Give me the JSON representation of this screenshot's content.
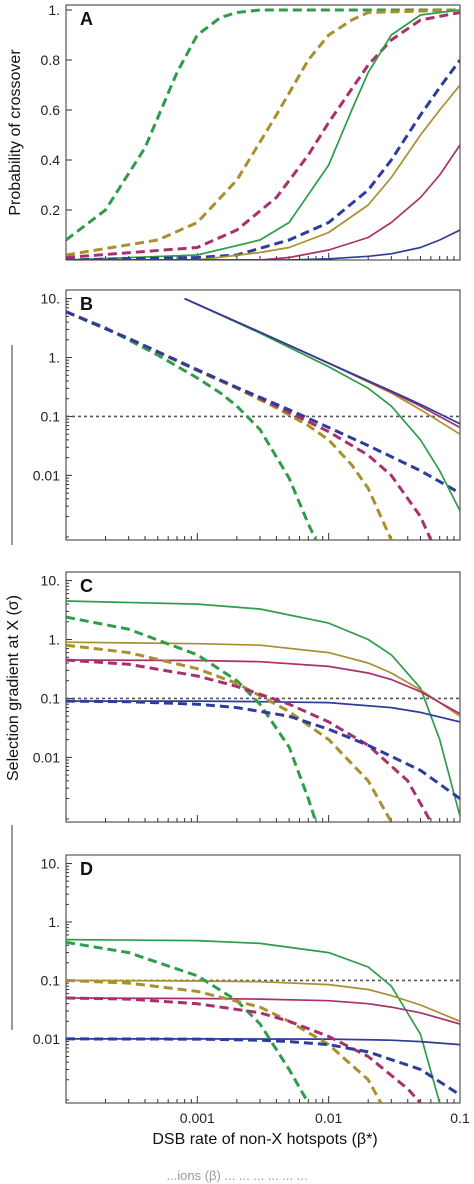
{
  "figure": {
    "shared_ylabel": "Selection gradient at X (σ)",
    "xlabel": "DSB rate of non-X hotspots (β*)",
    "caption_fragment": "...ions (β) ... ... ... ... ... ..."
  },
  "colors": {
    "green": "#2e9c4a",
    "olive": "#a8902e",
    "magenta": "#a8306e",
    "blue": "#2e3c9c",
    "reference": "#555555",
    "axis": "#333333"
  },
  "chart_data": [
    {
      "panel": "A",
      "type": "line",
      "ylabel": "Probability of crossover",
      "xscale": "log",
      "xlim": [
        0.0001,
        0.1
      ],
      "yscale": "linear",
      "ylim": [
        0,
        1.02
      ],
      "yticks": [
        0.2,
        0.4,
        0.6,
        0.8,
        1.0
      ],
      "ytick_labels": [
        "0.2",
        "0.4",
        "0.6",
        "0.8",
        "1."
      ],
      "series": [
        {
          "color": "green",
          "style": "dashed",
          "x": [
            0.0001,
            0.0002,
            0.0004,
            0.0007,
            0.001,
            0.0015,
            0.002,
            0.003,
            0.1
          ],
          "y": [
            0.08,
            0.2,
            0.45,
            0.75,
            0.9,
            0.97,
            0.99,
            1.0,
            1.0
          ]
        },
        {
          "color": "olive",
          "style": "dashed",
          "x": [
            0.0001,
            0.0005,
            0.001,
            0.002,
            0.004,
            0.007,
            0.01,
            0.015,
            0.02,
            0.1
          ],
          "y": [
            0.02,
            0.08,
            0.15,
            0.32,
            0.58,
            0.8,
            0.9,
            0.96,
            0.99,
            1.0
          ]
        },
        {
          "color": "magenta",
          "style": "dashed",
          "x": [
            0.0001,
            0.001,
            0.002,
            0.004,
            0.007,
            0.01,
            0.02,
            0.03,
            0.05,
            0.1
          ],
          "y": [
            0.01,
            0.05,
            0.12,
            0.25,
            0.42,
            0.55,
            0.78,
            0.88,
            0.96,
            0.99
          ]
        },
        {
          "color": "green",
          "style": "solid",
          "x": [
            0.0001,
            0.001,
            0.003,
            0.005,
            0.01,
            0.015,
            0.02,
            0.03,
            0.05,
            0.1
          ],
          "y": [
            0.0,
            0.02,
            0.08,
            0.15,
            0.38,
            0.6,
            0.75,
            0.9,
            0.98,
            1.0
          ]
        },
        {
          "color": "blue",
          "style": "dashed",
          "x": [
            0.0001,
            0.001,
            0.002,
            0.005,
            0.01,
            0.02,
            0.03,
            0.05,
            0.07,
            0.1
          ],
          "y": [
            0.0,
            0.01,
            0.02,
            0.08,
            0.15,
            0.28,
            0.4,
            0.58,
            0.69,
            0.8
          ]
        },
        {
          "color": "olive",
          "style": "solid",
          "x": [
            0.0001,
            0.001,
            0.003,
            0.005,
            0.01,
            0.02,
            0.03,
            0.05,
            0.07,
            0.1
          ],
          "y": [
            0.0,
            0.0,
            0.03,
            0.05,
            0.11,
            0.22,
            0.33,
            0.5,
            0.6,
            0.7
          ]
        },
        {
          "color": "magenta",
          "style": "solid",
          "x": [
            0.0001,
            0.003,
            0.005,
            0.01,
            0.02,
            0.03,
            0.05,
            0.07,
            0.1
          ],
          "y": [
            0.0,
            0.0,
            0.01,
            0.04,
            0.09,
            0.15,
            0.25,
            0.34,
            0.46
          ]
        },
        {
          "color": "blue",
          "style": "solid",
          "x": [
            0.0001,
            0.005,
            0.01,
            0.02,
            0.03,
            0.05,
            0.07,
            0.1
          ],
          "y": [
            0.0,
            0.0,
            0.005,
            0.015,
            0.025,
            0.05,
            0.08,
            0.12
          ]
        }
      ]
    },
    {
      "panel": "B",
      "type": "line",
      "ylabel": "",
      "xscale": "log",
      "xlim": [
        0.0001,
        0.1
      ],
      "yscale": "log",
      "ylim": [
        0.0008,
        14
      ],
      "yticks": [
        0.01,
        0.1,
        1,
        10
      ],
      "ytick_labels": [
        "0.01",
        "0.1",
        "1.",
        "10."
      ],
      "reference_line": 0.1,
      "series": [
        {
          "color": "green",
          "style": "dashed",
          "x": [
            0.0001,
            0.0002,
            0.0005,
            0.001,
            0.0015,
            0.002,
            0.003,
            0.005,
            0.007,
            0.008
          ],
          "y": [
            6.0,
            3.2,
            1.1,
            0.45,
            0.25,
            0.15,
            0.06,
            0.009,
            0.0015,
            0.0008
          ]
        },
        {
          "color": "olive",
          "style": "dashed",
          "x": [
            0.0001,
            0.0003,
            0.001,
            0.002,
            0.004,
            0.007,
            0.01,
            0.015,
            0.02,
            0.03
          ],
          "y": [
            6.0,
            2.1,
            0.6,
            0.3,
            0.14,
            0.07,
            0.04,
            0.015,
            0.006,
            0.0008
          ]
        },
        {
          "color": "magenta",
          "style": "dashed",
          "x": [
            0.0001,
            0.0003,
            0.001,
            0.002,
            0.004,
            0.01,
            0.02,
            0.03,
            0.05,
            0.06
          ],
          "y": [
            6.0,
            2.1,
            0.62,
            0.31,
            0.15,
            0.055,
            0.022,
            0.01,
            0.002,
            0.0008
          ]
        },
        {
          "color": "blue",
          "style": "dashed",
          "x": [
            0.0001,
            0.0003,
            0.001,
            0.002,
            0.005,
            0.01,
            0.02,
            0.05,
            0.1
          ],
          "y": [
            6.0,
            2.1,
            0.62,
            0.31,
            0.13,
            0.065,
            0.032,
            0.012,
            0.005
          ]
        },
        {
          "color": "green",
          "style": "solid",
          "x": [
            0.0008,
            0.001,
            0.003,
            0.01,
            0.02,
            0.03,
            0.05,
            0.07,
            0.1
          ],
          "y": [
            10.0,
            8.0,
            2.6,
            0.7,
            0.3,
            0.15,
            0.04,
            0.012,
            0.0025
          ]
        },
        {
          "color": "olive",
          "style": "solid",
          "x": [
            0.0008,
            0.001,
            0.003,
            0.01,
            0.03,
            0.05,
            0.1
          ],
          "y": [
            10.0,
            8.0,
            2.7,
            0.8,
            0.25,
            0.13,
            0.05
          ]
        },
        {
          "color": "magenta",
          "style": "solid",
          "x": [
            0.0008,
            0.001,
            0.003,
            0.01,
            0.03,
            0.05,
            0.1
          ],
          "y": [
            10.0,
            8.0,
            2.7,
            0.8,
            0.26,
            0.15,
            0.065
          ]
        },
        {
          "color": "blue",
          "style": "solid",
          "x": [
            0.0008,
            0.001,
            0.003,
            0.01,
            0.03,
            0.05,
            0.1
          ],
          "y": [
            10.0,
            8.0,
            2.7,
            0.8,
            0.27,
            0.16,
            0.075
          ]
        }
      ]
    },
    {
      "panel": "C",
      "type": "line",
      "ylabel": "",
      "xscale": "log",
      "xlim": [
        0.0001,
        0.1
      ],
      "yscale": "log",
      "ylim": [
        0.0008,
        14
      ],
      "yticks": [
        0.01,
        0.1,
        1,
        10
      ],
      "ytick_labels": [
        "0.01",
        "0.1",
        "1.",
        "10."
      ],
      "reference_line": 0.1,
      "series": [
        {
          "color": "green",
          "style": "solid",
          "x": [
            0.0001,
            0.001,
            0.003,
            0.01,
            0.02,
            0.03,
            0.05,
            0.07,
            0.1
          ],
          "y": [
            4.5,
            4.0,
            3.3,
            1.9,
            1.0,
            0.55,
            0.15,
            0.02,
            0.001
          ]
        },
        {
          "color": "olive",
          "style": "solid",
          "x": [
            0.0001,
            0.001,
            0.003,
            0.01,
            0.02,
            0.03,
            0.05,
            0.1
          ],
          "y": [
            0.9,
            0.85,
            0.8,
            0.6,
            0.4,
            0.27,
            0.14,
            0.05
          ]
        },
        {
          "color": "magenta",
          "style": "solid",
          "x": [
            0.0001,
            0.001,
            0.003,
            0.01,
            0.02,
            0.03,
            0.05,
            0.1
          ],
          "y": [
            0.45,
            0.44,
            0.42,
            0.35,
            0.27,
            0.21,
            0.13,
            0.055
          ]
        },
        {
          "color": "blue",
          "style": "solid",
          "x": [
            0.0001,
            0.001,
            0.003,
            0.01,
            0.03,
            0.05,
            0.1
          ],
          "y": [
            0.09,
            0.09,
            0.088,
            0.085,
            0.07,
            0.058,
            0.04
          ]
        },
        {
          "color": "green",
          "style": "dashed",
          "x": [
            0.0001,
            0.0003,
            0.001,
            0.002,
            0.003,
            0.005,
            0.007,
            0.008
          ],
          "y": [
            2.4,
            1.5,
            0.55,
            0.2,
            0.08,
            0.015,
            0.002,
            0.0008
          ]
        },
        {
          "color": "olive",
          "style": "dashed",
          "x": [
            0.0001,
            0.0003,
            0.001,
            0.002,
            0.005,
            0.01,
            0.02,
            0.03
          ],
          "y": [
            0.8,
            0.6,
            0.32,
            0.18,
            0.06,
            0.02,
            0.004,
            0.0008
          ]
        },
        {
          "color": "magenta",
          "style": "dashed",
          "x": [
            0.0001,
            0.0003,
            0.001,
            0.002,
            0.005,
            0.01,
            0.02,
            0.04,
            0.06
          ],
          "y": [
            0.45,
            0.38,
            0.24,
            0.16,
            0.08,
            0.04,
            0.016,
            0.004,
            0.0008
          ]
        },
        {
          "color": "blue",
          "style": "dashed",
          "x": [
            0.0001,
            0.0003,
            0.001,
            0.002,
            0.005,
            0.01,
            0.02,
            0.05,
            0.1
          ],
          "y": [
            0.09,
            0.088,
            0.08,
            0.07,
            0.05,
            0.03,
            0.016,
            0.006,
            0.002
          ]
        }
      ]
    },
    {
      "panel": "D",
      "type": "line",
      "ylabel": "",
      "xscale": "log",
      "xlim": [
        0.0001,
        0.1
      ],
      "xticks": [
        0.001,
        0.01,
        0.1
      ],
      "xtick_labels": [
        "0.001",
        "0.01",
        "0.1"
      ],
      "yscale": "log",
      "ylim": [
        0.0008,
        14
      ],
      "yticks": [
        0.01,
        0.1,
        1,
        10
      ],
      "ytick_labels": [
        "0.01",
        "0.1",
        "1.",
        "10."
      ],
      "reference_line": 0.1,
      "series": [
        {
          "color": "green",
          "style": "solid",
          "x": [
            0.0001,
            0.001,
            0.003,
            0.01,
            0.02,
            0.03,
            0.05,
            0.07
          ],
          "y": [
            0.5,
            0.48,
            0.43,
            0.3,
            0.17,
            0.08,
            0.012,
            0.0008
          ]
        },
        {
          "color": "olive",
          "style": "solid",
          "x": [
            0.0001,
            0.001,
            0.003,
            0.01,
            0.02,
            0.03,
            0.05,
            0.1
          ],
          "y": [
            0.1,
            0.098,
            0.095,
            0.085,
            0.07,
            0.055,
            0.038,
            0.02
          ]
        },
        {
          "color": "magenta",
          "style": "solid",
          "x": [
            0.0001,
            0.001,
            0.003,
            0.01,
            0.02,
            0.03,
            0.05,
            0.1
          ],
          "y": [
            0.05,
            0.049,
            0.048,
            0.045,
            0.04,
            0.035,
            0.028,
            0.018
          ]
        },
        {
          "color": "blue",
          "style": "solid",
          "x": [
            0.0001,
            0.001,
            0.01,
            0.03,
            0.05,
            0.1
          ],
          "y": [
            0.01,
            0.01,
            0.0099,
            0.0095,
            0.009,
            0.008
          ]
        },
        {
          "color": "green",
          "style": "dashed",
          "x": [
            0.0001,
            0.0003,
            0.001,
            0.002,
            0.003,
            0.005,
            0.007
          ],
          "y": [
            0.45,
            0.3,
            0.12,
            0.045,
            0.018,
            0.003,
            0.0008
          ]
        },
        {
          "color": "olive",
          "style": "dashed",
          "x": [
            0.0001,
            0.0003,
            0.001,
            0.003,
            0.005,
            0.01,
            0.02,
            0.025
          ],
          "y": [
            0.1,
            0.09,
            0.065,
            0.035,
            0.02,
            0.008,
            0.002,
            0.0008
          ]
        },
        {
          "color": "magenta",
          "style": "dashed",
          "x": [
            0.0001,
            0.0003,
            0.001,
            0.003,
            0.005,
            0.01,
            0.02,
            0.04,
            0.05
          ],
          "y": [
            0.05,
            0.048,
            0.04,
            0.028,
            0.02,
            0.011,
            0.005,
            0.0014,
            0.0008
          ]
        },
        {
          "color": "blue",
          "style": "dashed",
          "x": [
            0.0001,
            0.001,
            0.003,
            0.005,
            0.01,
            0.02,
            0.05,
            0.1
          ],
          "y": [
            0.01,
            0.0099,
            0.0095,
            0.009,
            0.008,
            0.006,
            0.003,
            0.0011
          ]
        }
      ]
    }
  ]
}
